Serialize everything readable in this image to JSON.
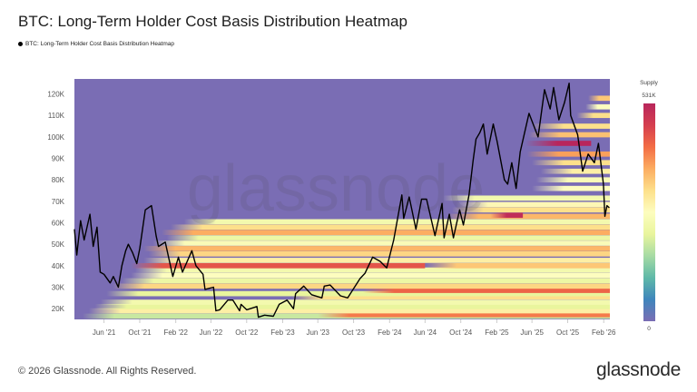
{
  "header": {
    "title": "BTC: Long-Term Holder Cost Basis Distribution Heatmap",
    "legend_label": "BTC: Long-Term Holder Cost Basis Distribution Heatmap"
  },
  "footer": {
    "copyright": "© 2026 Glassnode. All Rights Reserved.",
    "logo": "glassnode"
  },
  "watermark": "glassnode",
  "chart_data": {
    "type": "heatmap",
    "title": "BTC: Long-Term Holder Cost Basis Distribution Heatmap",
    "x_range": [
      "2021-02-20",
      "2026-02-22"
    ],
    "y_range": [
      15000,
      127000
    ],
    "x_ticks": [
      {
        "date": "2021-06-01",
        "label": "Jun '21"
      },
      {
        "date": "2021-10-01",
        "label": "Oct '21"
      },
      {
        "date": "2022-02-01",
        "label": "Feb '22"
      },
      {
        "date": "2022-06-01",
        "label": "Jun '22"
      },
      {
        "date": "2022-10-01",
        "label": "Oct '22"
      },
      {
        "date": "2023-02-01",
        "label": "Feb '23"
      },
      {
        "date": "2023-06-01",
        "label": "Jun '23"
      },
      {
        "date": "2023-10-01",
        "label": "Oct '23"
      },
      {
        "date": "2024-02-01",
        "label": "Feb '24"
      },
      {
        "date": "2024-06-01",
        "label": "Jun '24"
      },
      {
        "date": "2024-10-01",
        "label": "Oct '24"
      },
      {
        "date": "2025-02-01",
        "label": "Feb '25"
      },
      {
        "date": "2025-06-01",
        "label": "Jun '25"
      },
      {
        "date": "2025-10-01",
        "label": "Oct '25"
      },
      {
        "date": "2026-02-01",
        "label": "Feb '26"
      }
    ],
    "y_ticks": [
      {
        "value": 20000,
        "label": "20K"
      },
      {
        "value": 30000,
        "label": "30K"
      },
      {
        "value": 40000,
        "label": "40K"
      },
      {
        "value": 50000,
        "label": "50K"
      },
      {
        "value": 60000,
        "label": "60K"
      },
      {
        "value": 70000,
        "label": "70K"
      },
      {
        "value": 80000,
        "label": "80K"
      },
      {
        "value": 90000,
        "label": "90K"
      },
      {
        "value": 100000,
        "label": "100K"
      },
      {
        "value": 110000,
        "label": "110K"
      },
      {
        "value": 120000,
        "label": "120K"
      }
    ],
    "colorbar": {
      "label": "Supply",
      "max_label": "531K",
      "min_label": "0",
      "max": 531000,
      "min": 0,
      "colormap": "spectral-reversed"
    },
    "colors": {
      "empty": "#7a6db4",
      "price_line": "#000000"
    },
    "price_series": {
      "name": "BTC: Long-Term Holder Cost Basis Distribution Heatmap",
      "points": [
        [
          "2021-02-20",
          57000
        ],
        [
          "2021-02-28",
          45000
        ],
        [
          "2021-03-13",
          61000
        ],
        [
          "2021-03-25",
          52000
        ],
        [
          "2021-04-14",
          64000
        ],
        [
          "2021-04-25",
          49000
        ],
        [
          "2021-05-08",
          58000
        ],
        [
          "2021-05-19",
          37000
        ],
        [
          "2021-06-01",
          36000
        ],
        [
          "2021-06-22",
          32000
        ],
        [
          "2021-07-03",
          35000
        ],
        [
          "2021-07-20",
          30000
        ],
        [
          "2021-08-01",
          40000
        ],
        [
          "2021-08-14",
          47000
        ],
        [
          "2021-08-23",
          50000
        ],
        [
          "2021-09-07",
          46000
        ],
        [
          "2021-09-21",
          41000
        ],
        [
          "2021-10-01",
          48000
        ],
        [
          "2021-10-20",
          66000
        ],
        [
          "2021-11-10",
          68000
        ],
        [
          "2021-11-26",
          54000
        ],
        [
          "2021-12-04",
          49000
        ],
        [
          "2021-12-27",
          51000
        ],
        [
          "2022-01-22",
          35000
        ],
        [
          "2022-02-10",
          44000
        ],
        [
          "2022-02-24",
          37000
        ],
        [
          "2022-03-28",
          47000
        ],
        [
          "2022-04-11",
          40000
        ],
        [
          "2022-05-05",
          36000
        ],
        [
          "2022-05-12",
          29000
        ],
        [
          "2022-06-10",
          30000
        ],
        [
          "2022-06-18",
          19000
        ],
        [
          "2022-07-01",
          19500
        ],
        [
          "2022-07-29",
          24000
        ],
        [
          "2022-08-15",
          24000
        ],
        [
          "2022-09-07",
          19000
        ],
        [
          "2022-09-12",
          22000
        ],
        [
          "2022-10-01",
          19500
        ],
        [
          "2022-11-05",
          21000
        ],
        [
          "2022-11-10",
          16000
        ],
        [
          "2022-12-01",
          17000
        ],
        [
          "2022-12-31",
          16500
        ],
        [
          "2023-01-20",
          22000
        ],
        [
          "2023-02-16",
          24000
        ],
        [
          "2023-03-10",
          20000
        ],
        [
          "2023-03-17",
          27000
        ],
        [
          "2023-04-14",
          30500
        ],
        [
          "2023-05-11",
          26500
        ],
        [
          "2023-06-15",
          25000
        ],
        [
          "2023-06-23",
          30500
        ],
        [
          "2023-07-13",
          31000
        ],
        [
          "2023-08-17",
          26000
        ],
        [
          "2023-09-11",
          25000
        ],
        [
          "2023-10-23",
          34000
        ],
        [
          "2023-11-09",
          36500
        ],
        [
          "2023-12-05",
          44000
        ],
        [
          "2023-12-31",
          42000
        ],
        [
          "2024-01-22",
          39000
        ],
        [
          "2024-02-15",
          52000
        ],
        [
          "2024-03-14",
          73000
        ],
        [
          "2024-03-20",
          62000
        ],
        [
          "2024-04-08",
          72000
        ],
        [
          "2024-05-01",
          57000
        ],
        [
          "2024-05-20",
          71000
        ],
        [
          "2024-06-06",
          71000
        ],
        [
          "2024-07-05",
          54000
        ],
        [
          "2024-07-29",
          69000
        ],
        [
          "2024-08-05",
          53000
        ],
        [
          "2024-08-23",
          64000
        ],
        [
          "2024-09-06",
          53000
        ],
        [
          "2024-09-27",
          66000
        ],
        [
          "2024-10-10",
          59000
        ],
        [
          "2024-10-29",
          73000
        ],
        [
          "2024-11-12",
          89000
        ],
        [
          "2024-11-22",
          99000
        ],
        [
          "2024-12-05",
          102000
        ],
        [
          "2024-12-17",
          106000
        ],
        [
          "2024-12-30",
          92000
        ],
        [
          "2025-01-20",
          106000
        ],
        [
          "2025-02-02",
          98000
        ],
        [
          "2025-02-27",
          80000
        ],
        [
          "2025-03-10",
          78000
        ],
        [
          "2025-03-24",
          88000
        ],
        [
          "2025-04-08",
          76000
        ],
        [
          "2025-04-22",
          93000
        ],
        [
          "2025-05-22",
          111000
        ],
        [
          "2025-06-22",
          100000
        ],
        [
          "2025-07-14",
          122000
        ],
        [
          "2025-08-02",
          113000
        ],
        [
          "2025-08-14",
          123000
        ],
        [
          "2025-09-01",
          108000
        ],
        [
          "2025-09-20",
          116000
        ],
        [
          "2025-10-06",
          125000
        ],
        [
          "2025-10-11",
          110000
        ],
        [
          "2025-11-04",
          101000
        ],
        [
          "2025-11-21",
          84000
        ],
        [
          "2025-12-10",
          92000
        ],
        [
          "2025-12-31",
          88000
        ],
        [
          "2026-01-14",
          97000
        ],
        [
          "2026-01-31",
          78000
        ],
        [
          "2026-02-05",
          63000
        ],
        [
          "2026-02-12",
          68000
        ],
        [
          "2026-02-20",
          67000
        ]
      ]
    },
    "heat_bands": [
      {
        "price": 16500,
        "from": "2021-03-20",
        "to": "2026-02-22",
        "supply": 0.35
      },
      {
        "price": 17200,
        "from": "2023-06-01",
        "to": "2026-02-22",
        "supply": 0.78
      },
      {
        "price": 19000,
        "from": "2021-04-10",
        "to": "2026-02-22",
        "supply": 0.55
      },
      {
        "price": 21000,
        "from": "2021-05-01",
        "to": "2026-02-22",
        "supply": 0.4
      },
      {
        "price": 23000,
        "from": "2021-05-20",
        "to": "2026-02-22",
        "supply": 0.45
      },
      {
        "price": 25500,
        "from": "2023-03-01",
        "to": "2026-02-22",
        "supply": 0.6
      },
      {
        "price": 27000,
        "from": "2021-06-10",
        "to": "2026-02-22",
        "supply": 0.4
      },
      {
        "price": 28500,
        "from": "2023-11-01",
        "to": "2026-02-22",
        "supply": 0.82
      },
      {
        "price": 30500,
        "from": "2021-07-01",
        "to": "2026-02-22",
        "supply": 0.62
      },
      {
        "price": 33000,
        "from": "2021-08-01",
        "to": "2026-02-22",
        "supply": 0.42
      },
      {
        "price": 35500,
        "from": "2021-09-01",
        "to": "2026-02-22",
        "supply": 0.5
      },
      {
        "price": 38000,
        "from": "2021-09-15",
        "to": "2026-02-22",
        "supply": 0.45
      },
      {
        "price": 40000,
        "from": "2021-09-01",
        "to": "2024-06-01",
        "supply": 0.85
      },
      {
        "price": 40000,
        "from": "2024-06-01",
        "to": "2026-02-22",
        "supply": 0.65
      },
      {
        "price": 42500,
        "from": "2021-10-15",
        "to": "2026-02-22",
        "supply": 0.55
      },
      {
        "price": 45500,
        "from": "2021-11-01",
        "to": "2026-02-22",
        "supply": 0.62
      },
      {
        "price": 48000,
        "from": "2021-10-15",
        "to": "2026-02-22",
        "supply": 0.68
      },
      {
        "price": 50500,
        "from": "2021-11-15",
        "to": "2026-02-22",
        "supply": 0.48
      },
      {
        "price": 53000,
        "from": "2022-01-01",
        "to": "2026-02-22",
        "supply": 0.42
      },
      {
        "price": 55500,
        "from": "2021-12-15",
        "to": "2026-02-22",
        "supply": 0.7
      },
      {
        "price": 58000,
        "from": "2022-01-15",
        "to": "2026-02-22",
        "supply": 0.6
      },
      {
        "price": 60500,
        "from": "2022-03-01",
        "to": "2026-02-22",
        "supply": 0.45
      },
      {
        "price": 63000,
        "from": "2024-08-15",
        "to": "2026-02-22",
        "supply": 0.68
      },
      {
        "price": 63500,
        "from": "2025-01-10",
        "to": "2025-05-01",
        "supply": 0.97
      },
      {
        "price": 66000,
        "from": "2024-09-01",
        "to": "2026-02-22",
        "supply": 0.6
      },
      {
        "price": 68500,
        "from": "2024-09-15",
        "to": "2026-02-22",
        "supply": 0.52
      },
      {
        "price": 71500,
        "from": "2024-08-01",
        "to": "2026-02-22",
        "supply": 0.45
      },
      {
        "price": 76000,
        "from": "2025-06-01",
        "to": "2026-02-22",
        "supply": 0.5
      },
      {
        "price": 80000,
        "from": "2025-06-15",
        "to": "2026-02-22",
        "supply": 0.48
      },
      {
        "price": 84000,
        "from": "2025-07-01",
        "to": "2026-02-22",
        "supply": 0.55
      },
      {
        "price": 88000,
        "from": "2025-06-01",
        "to": "2026-02-22",
        "supply": 0.6
      },
      {
        "price": 92000,
        "from": "2025-05-15",
        "to": "2026-02-22",
        "supply": 0.72
      },
      {
        "price": 97000,
        "from": "2025-05-10",
        "to": "2025-12-20",
        "supply": 1.0
      },
      {
        "price": 101000,
        "from": "2025-05-20",
        "to": "2026-02-22",
        "supply": 0.66
      },
      {
        "price": 105000,
        "from": "2025-06-01",
        "to": "2026-02-22",
        "supply": 0.6
      },
      {
        "price": 110000,
        "from": "2025-11-01",
        "to": "2026-02-22",
        "supply": 0.6
      },
      {
        "price": 114000,
        "from": "2025-12-01",
        "to": "2026-02-22",
        "supply": 0.5
      },
      {
        "price": 118000,
        "from": "2025-12-10",
        "to": "2026-02-22",
        "supply": 0.65
      }
    ]
  }
}
